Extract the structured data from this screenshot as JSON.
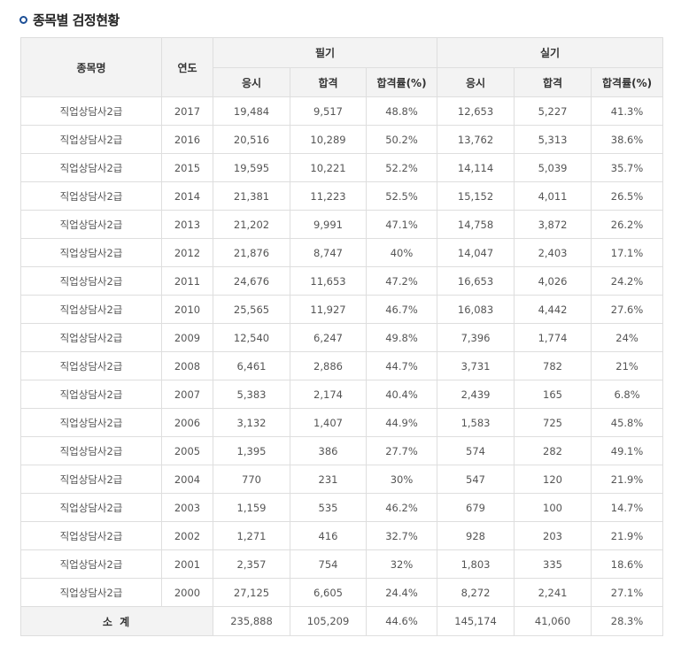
{
  "section": {
    "title": "종목별 검정현황",
    "icon": "bullet-ring-icon"
  },
  "table": {
    "headers": {
      "name": "종목명",
      "year": "연도",
      "written_group": "필기",
      "practical_group": "실기",
      "applicants": "응시",
      "passed": "합격",
      "pass_rate": "합격률(%)"
    },
    "rows": [
      {
        "name": "직업상담사2급",
        "year": "2017",
        "w_apply": "19,484",
        "w_pass": "9,517",
        "w_rate": "48.8%",
        "p_apply": "12,653",
        "p_pass": "5,227",
        "p_rate": "41.3%"
      },
      {
        "name": "직업상담사2급",
        "year": "2016",
        "w_apply": "20,516",
        "w_pass": "10,289",
        "w_rate": "50.2%",
        "p_apply": "13,762",
        "p_pass": "5,313",
        "p_rate": "38.6%"
      },
      {
        "name": "직업상담사2급",
        "year": "2015",
        "w_apply": "19,595",
        "w_pass": "10,221",
        "w_rate": "52.2%",
        "p_apply": "14,114",
        "p_pass": "5,039",
        "p_rate": "35.7%"
      },
      {
        "name": "직업상담사2급",
        "year": "2014",
        "w_apply": "21,381",
        "w_pass": "11,223",
        "w_rate": "52.5%",
        "p_apply": "15,152",
        "p_pass": "4,011",
        "p_rate": "26.5%"
      },
      {
        "name": "직업상담사2급",
        "year": "2013",
        "w_apply": "21,202",
        "w_pass": "9,991",
        "w_rate": "47.1%",
        "p_apply": "14,758",
        "p_pass": "3,872",
        "p_rate": "26.2%"
      },
      {
        "name": "직업상담사2급",
        "year": "2012",
        "w_apply": "21,876",
        "w_pass": "8,747",
        "w_rate": "40%",
        "p_apply": "14,047",
        "p_pass": "2,403",
        "p_rate": "17.1%"
      },
      {
        "name": "직업상담사2급",
        "year": "2011",
        "w_apply": "24,676",
        "w_pass": "11,653",
        "w_rate": "47.2%",
        "p_apply": "16,653",
        "p_pass": "4,026",
        "p_rate": "24.2%"
      },
      {
        "name": "직업상담사2급",
        "year": "2010",
        "w_apply": "25,565",
        "w_pass": "11,927",
        "w_rate": "46.7%",
        "p_apply": "16,083",
        "p_pass": "4,442",
        "p_rate": "27.6%"
      },
      {
        "name": "직업상담사2급",
        "year": "2009",
        "w_apply": "12,540",
        "w_pass": "6,247",
        "w_rate": "49.8%",
        "p_apply": "7,396",
        "p_pass": "1,774",
        "p_rate": "24%"
      },
      {
        "name": "직업상담사2급",
        "year": "2008",
        "w_apply": "6,461",
        "w_pass": "2,886",
        "w_rate": "44.7%",
        "p_apply": "3,731",
        "p_pass": "782",
        "p_rate": "21%"
      },
      {
        "name": "직업상담사2급",
        "year": "2007",
        "w_apply": "5,383",
        "w_pass": "2,174",
        "w_rate": "40.4%",
        "p_apply": "2,439",
        "p_pass": "165",
        "p_rate": "6.8%"
      },
      {
        "name": "직업상담사2급",
        "year": "2006",
        "w_apply": "3,132",
        "w_pass": "1,407",
        "w_rate": "44.9%",
        "p_apply": "1,583",
        "p_pass": "725",
        "p_rate": "45.8%"
      },
      {
        "name": "직업상담사2급",
        "year": "2005",
        "w_apply": "1,395",
        "w_pass": "386",
        "w_rate": "27.7%",
        "p_apply": "574",
        "p_pass": "282",
        "p_rate": "49.1%"
      },
      {
        "name": "직업상담사2급",
        "year": "2004",
        "w_apply": "770",
        "w_pass": "231",
        "w_rate": "30%",
        "p_apply": "547",
        "p_pass": "120",
        "p_rate": "21.9%"
      },
      {
        "name": "직업상담사2급",
        "year": "2003",
        "w_apply": "1,159",
        "w_pass": "535",
        "w_rate": "46.2%",
        "p_apply": "679",
        "p_pass": "100",
        "p_rate": "14.7%"
      },
      {
        "name": "직업상담사2급",
        "year": "2002",
        "w_apply": "1,271",
        "w_pass": "416",
        "w_rate": "32.7%",
        "p_apply": "928",
        "p_pass": "203",
        "p_rate": "21.9%"
      },
      {
        "name": "직업상담사2급",
        "year": "2001",
        "w_apply": "2,357",
        "w_pass": "754",
        "w_rate": "32%",
        "p_apply": "1,803",
        "p_pass": "335",
        "p_rate": "18.6%"
      },
      {
        "name": "직업상담사2급",
        "year": "2000",
        "w_apply": "27,125",
        "w_pass": "6,605",
        "w_rate": "24.4%",
        "p_apply": "8,272",
        "p_pass": "2,241",
        "p_rate": "27.1%"
      }
    ],
    "total": {
      "label": "소 계",
      "w_apply": "235,888",
      "w_pass": "105,209",
      "w_rate": "44.6%",
      "p_apply": "145,174",
      "p_pass": "41,060",
      "p_rate": "28.3%"
    }
  },
  "colors": {
    "accent": "#1d4f96",
    "header_bg": "#f3f3f3",
    "border": "#dedede"
  }
}
